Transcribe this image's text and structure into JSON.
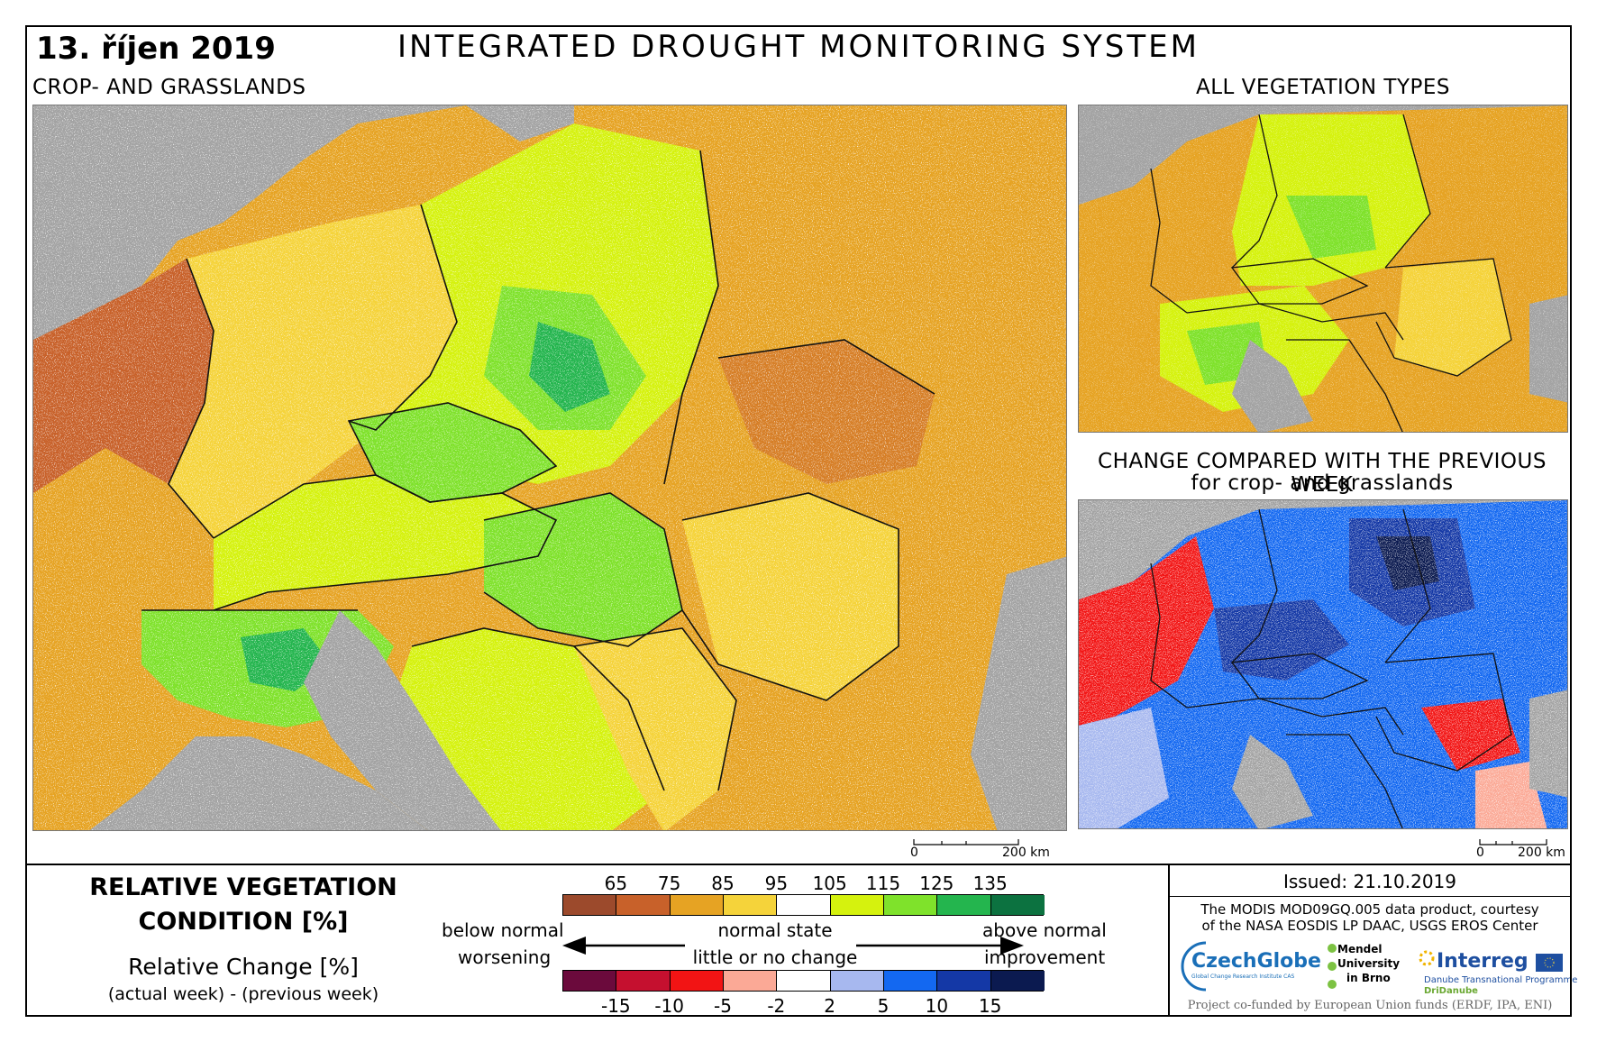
{
  "header": {
    "date": "13. říjen 2019",
    "title": "INTEGRATED DROUGHT MONITORING SYSTEM"
  },
  "maps": {
    "main_label": "CROP- AND GRASSLANDS",
    "all_veg_label": "ALL VEGETATION TYPES",
    "change_label_1": "CHANGE COMPARED WITH THE PREVIOUS WEEK",
    "change_label_2": "for crop- and grasslands",
    "scale_zero": "0",
    "scale_main": "200 km",
    "scale_small": "200 km"
  },
  "legend": {
    "title_1": "RELATIVE VEGETATION",
    "title_2": "CONDITION [%]",
    "rel_change": "Relative Change [%]",
    "rel_sub": "(actual week) - (previous week)",
    "condition_ticks": [
      "65",
      "75",
      "85",
      "95",
      "105",
      "115",
      "125",
      "135"
    ],
    "condition_colors": [
      "#9c4a2c",
      "#c8612a",
      "#e6a323",
      "#f5d33a",
      "#ffffff",
      "#d5f20e",
      "#7fe22b",
      "#24b54e",
      "#0c7240"
    ],
    "change_ticks": [
      "-15",
      "-10",
      "-5",
      "-2",
      "2",
      "5",
      "10",
      "15"
    ],
    "change_colors": [
      "#6b0a3c",
      "#c5102f",
      "#f21414",
      "#fba996",
      "#ffffff",
      "#a7b8ef",
      "#1368f1",
      "#1438a6",
      "#0b1a50"
    ],
    "below_normal": "below normal",
    "worsening": "worsening",
    "normal_state": "normal state",
    "little_change": "little or no change",
    "above_normal": "above normal",
    "improvement": "improvement"
  },
  "footer": {
    "issued": "Issued: 21.10.2019",
    "credit_1": "The MODIS MOD09GQ.005 data product, courtesy",
    "credit_2": "of the NASA EOSDIS LP DAAC, USGS EROS Center",
    "czechglobe": "CzechGlobe",
    "czechglobe_sub": "Global Change Research Institute CAS",
    "mendel_1": "Mendel",
    "mendel_2": "University",
    "mendel_3": "in Brno",
    "interreg": "Interreg",
    "interreg_sub": "Danube Transnational Programme",
    "dridanube": "DriDanube",
    "cofunded": "Project co-funded by European Union funds (ERDF, IPA, ENI)"
  },
  "colors": {
    "sea": "#a3a3a3",
    "border": "#111111"
  }
}
